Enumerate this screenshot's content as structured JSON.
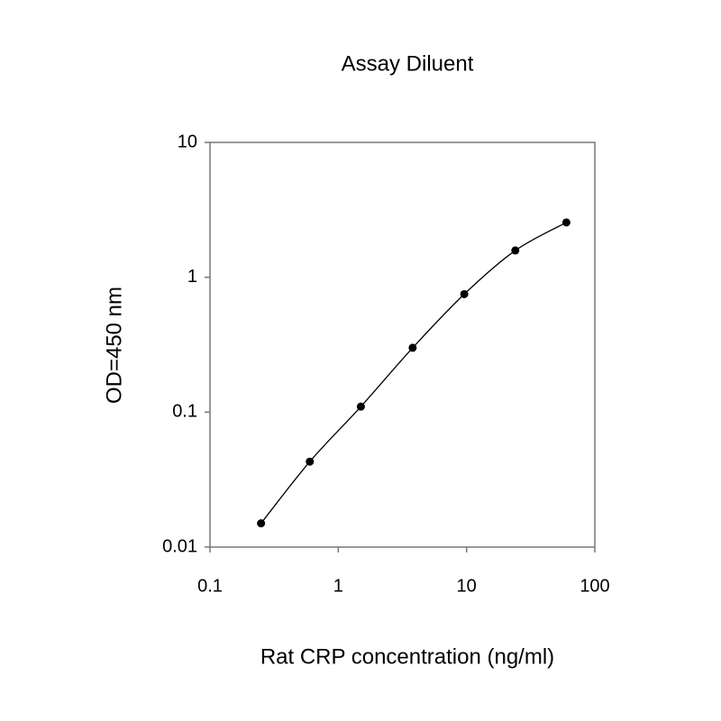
{
  "chart_data": {
    "type": "line",
    "title": "Assay Diluent",
    "xlabel": "Rat CRP concentration (ng/ml)",
    "ylabel": "OD=450 nm",
    "x": [
      0.25,
      0.6,
      1.5,
      3.8,
      9.6,
      24,
      60
    ],
    "series": [
      {
        "color": "#000000",
        "values": [
          0.015,
          0.043,
          0.11,
          0.3,
          0.75,
          1.58,
          2.55
        ]
      }
    ],
    "xscale": "log",
    "yscale": "log",
    "xlim": [
      0.1,
      100
    ],
    "xticks": [
      0.1,
      1,
      10,
      100
    ],
    "ylim": [
      0.01,
      10
    ],
    "yticks": [
      0.01,
      0.1,
      1,
      10
    ],
    "grid": false,
    "markers": true
  }
}
